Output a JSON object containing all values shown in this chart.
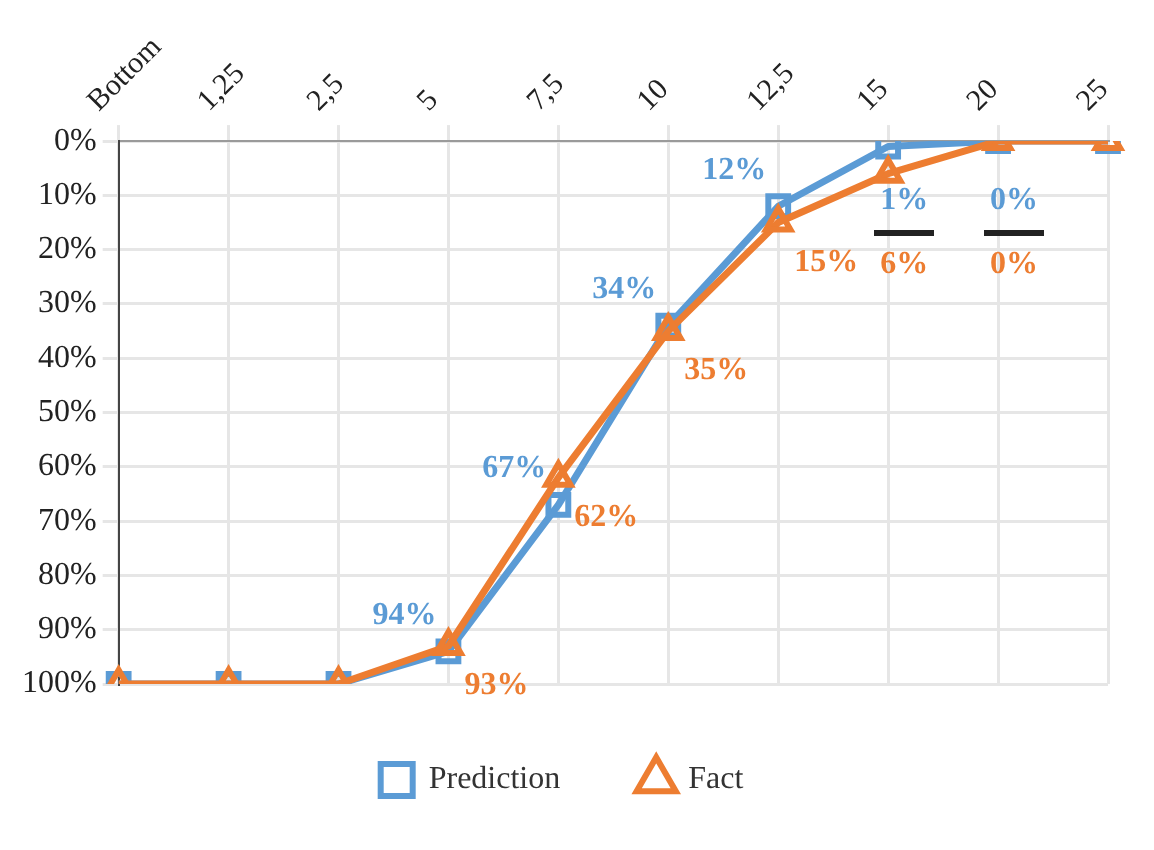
{
  "chart_data": {
    "type": "line",
    "categories": [
      "Bottom",
      "1,25",
      "2,5",
      "5",
      "7,5",
      "10",
      "12,5",
      "15",
      "20",
      "25"
    ],
    "series": [
      {
        "name": "Prediction",
        "color": "#5b9bd5",
        "marker": "square",
        "values": [
          100,
          100,
          100,
          94,
          67,
          34,
          12,
          1,
          0,
          0
        ],
        "value_labels": [
          null,
          null,
          null,
          "94%",
          "67%",
          "34%",
          "12%",
          "1%",
          "0%",
          null
        ]
      },
      {
        "name": "Fact",
        "color": "#ed7d31",
        "marker": "triangle",
        "values": [
          100,
          100,
          100,
          93,
          62,
          35,
          15,
          6,
          0,
          0
        ],
        "value_labels": [
          null,
          null,
          null,
          "93%",
          "62%",
          "35%",
          "15%",
          "6%",
          "0%",
          null
        ]
      }
    ],
    "ylim": [
      100,
      0
    ],
    "yticks": [
      {
        "value": 0,
        "label": "0%"
      },
      {
        "value": 10,
        "label": "10%"
      },
      {
        "value": 20,
        "label": "20%"
      },
      {
        "value": 30,
        "label": "30%"
      },
      {
        "value": 40,
        "label": "40%"
      },
      {
        "value": 50,
        "label": "50%"
      },
      {
        "value": 60,
        "label": "60%"
      },
      {
        "value": 70,
        "label": "70%"
      },
      {
        "value": 80,
        "label": "80%"
      },
      {
        "value": 90,
        "label": "90%"
      },
      {
        "value": 100,
        "label": "100%"
      }
    ],
    "grid": true,
    "legend": "bottom",
    "line_style": "solid"
  }
}
